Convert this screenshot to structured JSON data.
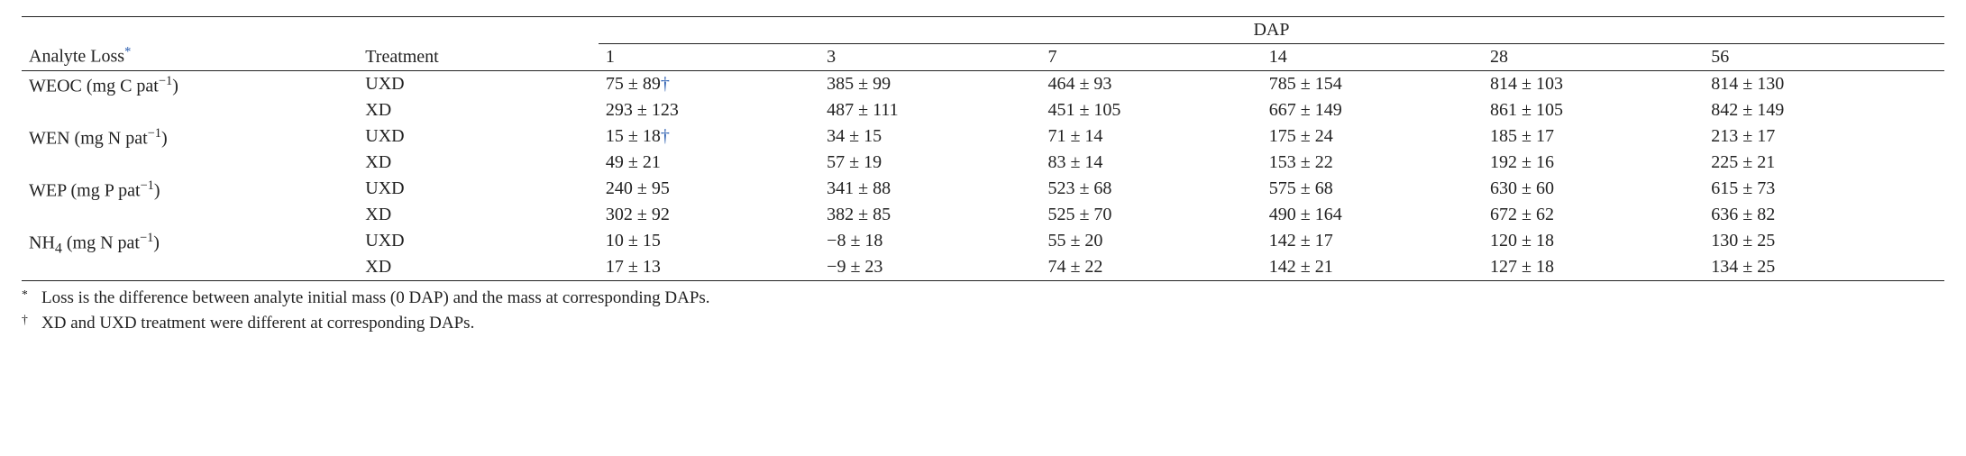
{
  "columns": {
    "analyte_header": "Analyte Loss",
    "treatment_header": "Treatment",
    "group_header": "DAP",
    "dap_labels": [
      "1",
      "3",
      "7",
      "14",
      "28",
      "56"
    ]
  },
  "analytes": [
    {
      "label_pre": "WEOC (mg C pat",
      "label_sup": "−1",
      "label_post": ")",
      "rows": [
        {
          "treatment": "UXD",
          "vals": [
            "75 ± 89",
            "385 ± 99",
            "464 ± 93",
            "785 ± 154",
            "814 ± 103",
            "814 ± 130"
          ],
          "dagger_on_first": true
        },
        {
          "treatment": "XD",
          "vals": [
            "293 ± 123",
            "487 ± 111",
            "451 ± 105",
            "667 ± 149",
            "861 ± 105",
            "842 ± 149"
          ]
        }
      ]
    },
    {
      "label_pre": "WEN (mg N pat",
      "label_sup": "−1",
      "label_post": ")",
      "rows": [
        {
          "treatment": "UXD",
          "vals": [
            "15 ± 18",
            "34 ± 15",
            "71 ± 14",
            "175 ± 24",
            "185 ± 17",
            "213 ± 17"
          ],
          "dagger_on_first": true
        },
        {
          "treatment": "XD",
          "vals": [
            "49 ± 21",
            "57 ± 19",
            "83 ± 14",
            "153 ± 22",
            "192 ± 16",
            "225 ± 21"
          ]
        }
      ]
    },
    {
      "label_pre": "WEP (mg P pat",
      "label_sup": "−1",
      "label_post": ")",
      "rows": [
        {
          "treatment": "UXD",
          "vals": [
            "240 ± 95",
            "341 ± 88",
            "523 ± 68",
            "575 ± 68",
            "630 ± 60",
            "615 ± 73"
          ]
        },
        {
          "treatment": "XD",
          "vals": [
            "302 ± 92",
            "382 ± 85",
            "525 ± 70",
            "490 ± 164",
            "672 ± 62",
            "636 ± 82"
          ]
        }
      ]
    },
    {
      "label_pre": "NH",
      "label_sub": "4",
      "label_pre2": " (mg N pat",
      "label_sup": "−1",
      "label_post": ")",
      "rows": [
        {
          "treatment": "UXD",
          "vals": [
            "10 ± 15",
            "−8 ± 18",
            "55 ± 20",
            "142 ± 17",
            "120 ± 18",
            "130 ± 25"
          ]
        },
        {
          "treatment": "XD",
          "vals": [
            "17 ± 13",
            "−9 ± 23",
            "74 ± 22",
            "142 ± 21",
            "127 ± 18",
            "134 ± 25"
          ]
        }
      ]
    }
  ],
  "footnotes": {
    "star_mark": "*",
    "star_text": "Loss is the difference between analyte initial mass (0 DAP) and the mass at corresponding DAPs.",
    "dagger_mark": "†",
    "dagger_text": "XD and UXD treatment were different at corresponding DAPs."
  },
  "col_widths": [
    "17.5%",
    "12.5%",
    "11.5%",
    "11.5%",
    "11.5%",
    "11.5%",
    "11.5%",
    "12.5%"
  ]
}
